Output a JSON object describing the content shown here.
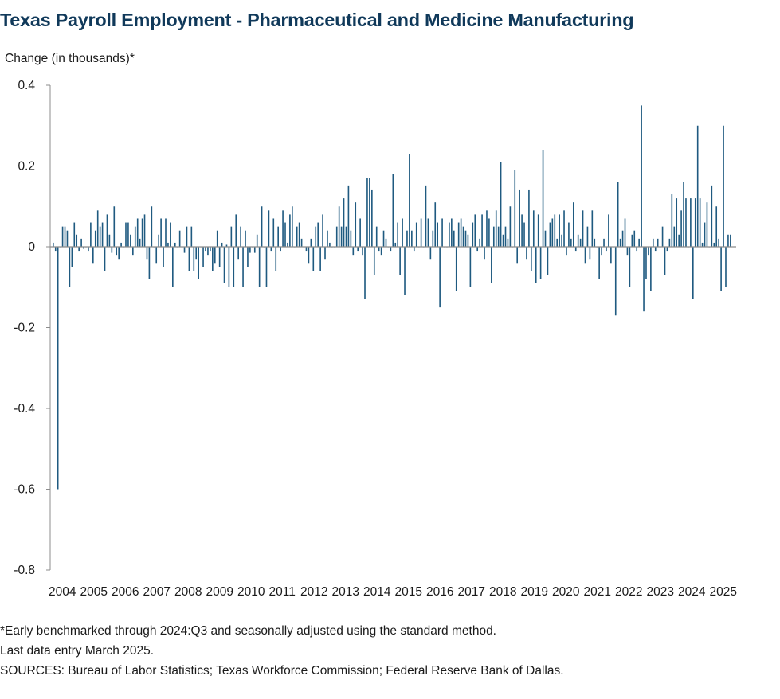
{
  "title": "Texas Payroll Employment - Pharmaceutical and Medicine Manufacturing",
  "footnotes": {
    "line1": "*Early benchmarked through 2024:Q3 and seasonally adjusted using the standard method.",
    "line2": "Last data entry March 2025.",
    "line3": "SOURCES: Bureau of Labor Statistics; Texas Workforce Commission; Federal Reserve Bank of Dallas."
  },
  "chart_data": {
    "type": "bar",
    "ylabel": "Change (in thousands)*",
    "ylim": [
      -0.8,
      0.4
    ],
    "yticks": [
      0.4,
      0.2,
      0,
      -0.2,
      -0.4,
      -0.6,
      -0.8
    ],
    "ytick_labels": [
      "0.4",
      "0.2",
      "0",
      "-0.2",
      "-0.4",
      "-0.6",
      "-0.8"
    ],
    "xtick_labels": [
      "2004",
      "2005",
      "2006",
      "2007",
      "2008",
      "2009",
      "2010",
      "2011",
      "2012",
      "2013",
      "2014",
      "2015",
      "2016",
      "2017",
      "2018",
      "2019",
      "2020",
      "2021",
      "2022",
      "2023",
      "2024",
      "2025"
    ],
    "grid": false,
    "bar_color": "#1f5a80",
    "x_start": "2003-12",
    "x_end": "2025-03",
    "values": [
      0.01,
      -0.01,
      -0.6,
      0.0,
      0.05,
      0.05,
      0.04,
      -0.1,
      -0.05,
      0.06,
      0.03,
      -0.01,
      0.02,
      -0.005,
      0.0,
      -0.01,
      0.06,
      -0.04,
      0.04,
      0.09,
      0.05,
      0.06,
      -0.06,
      0.08,
      0.03,
      -0.015,
      0.1,
      -0.02,
      -0.03,
      0.01,
      0.0,
      0.06,
      0.06,
      0.03,
      -0.02,
      0.05,
      0.07,
      0.02,
      0.07,
      0.08,
      -0.03,
      -0.08,
      0.1,
      0.0,
      -0.04,
      0.03,
      0.07,
      -0.05,
      0.07,
      0.01,
      0.06,
      -0.1,
      0.01,
      0.0,
      0.04,
      0.0,
      -0.015,
      0.05,
      -0.06,
      0.05,
      -0.06,
      -0.03,
      -0.08,
      0.0,
      -0.05,
      -0.01,
      -0.02,
      -0.01,
      -0.06,
      -0.04,
      0.04,
      -0.05,
      0.01,
      -0.09,
      0.005,
      -0.1,
      0.05,
      -0.1,
      0.08,
      -0.03,
      0.05,
      -0.1,
      0.04,
      -0.05,
      -0.015,
      0.0,
      -0.015,
      0.03,
      -0.1,
      0.1,
      0.0,
      -0.1,
      0.09,
      -0.01,
      0.07,
      -0.06,
      0.05,
      -0.01,
      0.09,
      0.06,
      0.01,
      0.08,
      0.1,
      0.0,
      0.05,
      0.06,
      0.02,
      0.0,
      -0.01,
      -0.04,
      0.02,
      -0.06,
      0.05,
      0.06,
      -0.06,
      0.08,
      -0.03,
      0.04,
      0.01,
      0.0,
      0.0,
      0.05,
      0.1,
      0.05,
      0.12,
      0.05,
      0.15,
      0.04,
      -0.02,
      0.11,
      -0.01,
      0.07,
      -0.02,
      -0.13,
      0.17,
      0.17,
      0.14,
      -0.07,
      0.05,
      -0.01,
      -0.02,
      0.04,
      0.02,
      0.0,
      -0.01,
      0.18,
      0.01,
      0.06,
      -0.07,
      0.07,
      -0.12,
      0.04,
      0.23,
      0.04,
      -0.01,
      0.06,
      0.0,
      0.07,
      0.0,
      0.15,
      0.07,
      -0.03,
      0.04,
      0.11,
      0.06,
      -0.15,
      0.07,
      0.0,
      0.0,
      0.06,
      0.07,
      0.04,
      -0.11,
      0.06,
      0.07,
      0.05,
      0.04,
      0.03,
      -0.1,
      0.06,
      0.08,
      -0.01,
      0.02,
      0.08,
      -0.03,
      0.09,
      0.07,
      -0.09,
      0.05,
      0.09,
      0.05,
      0.21,
      0.03,
      0.05,
      0.02,
      0.1,
      0.0,
      0.19,
      -0.04,
      0.14,
      0.08,
      0.06,
      -0.03,
      0.14,
      -0.06,
      0.09,
      -0.09,
      0.08,
      -0.08,
      0.24,
      0.04,
      -0.07,
      0.06,
      0.07,
      0.08,
      0.02,
      0.08,
      0.03,
      0.09,
      -0.02,
      0.06,
      0.02,
      0.11,
      -0.01,
      0.03,
      0.02,
      0.09,
      -0.04,
      0.05,
      -0.03,
      0.09,
      0.02,
      0.0,
      -0.08,
      -0.02,
      0.02,
      -0.01,
      0.08,
      -0.04,
      0.0,
      -0.17,
      0.16,
      0.02,
      0.04,
      0.07,
      -0.02,
      -0.1,
      0.03,
      0.04,
      -0.01,
      0.02,
      0.35,
      -0.16,
      -0.08,
      -0.02,
      -0.11,
      0.02,
      -0.01,
      0.02,
      0.0,
      0.05,
      -0.07,
      -0.01,
      0.02,
      0.13,
      0.05,
      0.12,
      0.03,
      0.09,
      0.16,
      0.12,
      0.0,
      0.12,
      -0.13,
      0.12,
      0.3,
      0.12,
      0.01,
      0.06,
      0.11,
      0.0,
      0.15,
      0.01,
      0.1,
      0.02,
      -0.11,
      0.3,
      -0.1,
      0.03,
      0.03
    ]
  }
}
